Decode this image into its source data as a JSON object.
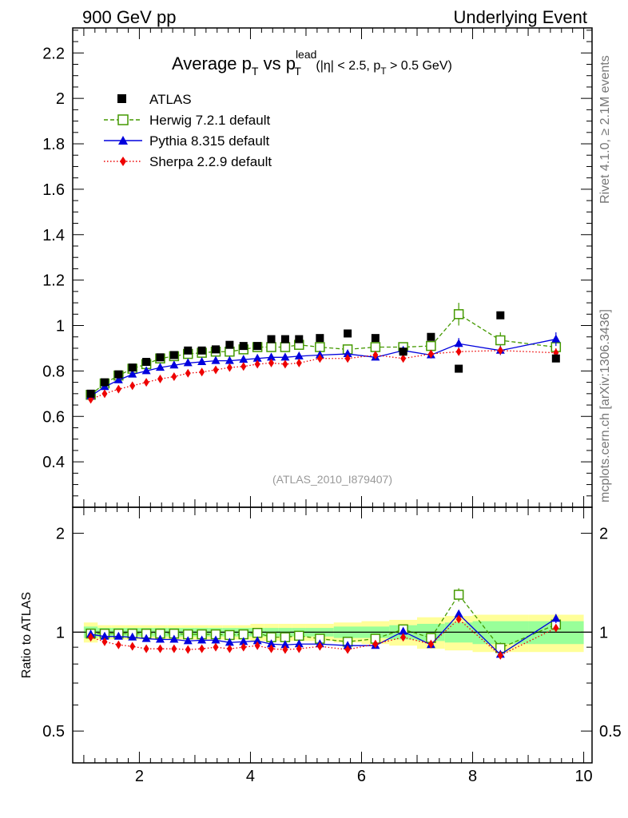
{
  "header": {
    "left": "900 GeV pp",
    "right": "Underlying Event"
  },
  "side": {
    "rivet": "Rivet 4.1.0, ≥ 2.1M events",
    "mcplots": "mcplots.cern.ch [arXiv:1306.3436]"
  },
  "chart_data": {
    "type": "scatter",
    "title": {
      "main": "Average p",
      "sub_t": "T",
      "vs": " vs p",
      "sup_lead": "lead",
      "sub_t2": "T",
      "cond_open": " (|η| < 2.5, p",
      "cond_sub": "T",
      "cond_close": " > 0.5 GeV)"
    },
    "analysis_label": "(ATLAS_2010_I879407)",
    "ratio_ylabel": "Ratio to ATLAS",
    "xlabel": "",
    "xlim": [
      0.8,
      10.15
    ],
    "ylim_main": [
      0.2,
      2.31
    ],
    "ylim_ratio": [
      0.4,
      2.4
    ],
    "x_ticks": [
      "2",
      "4",
      "6",
      "8",
      "10"
    ],
    "main_y_ticks": [
      "0.4",
      "0.6",
      "0.8",
      "1",
      "1.2",
      "1.4",
      "1.6",
      "1.8",
      "2",
      "2.2"
    ],
    "ratio_y_ticks": [
      "0.5",
      "1",
      "2"
    ],
    "x": [
      1.125,
      1.375,
      1.625,
      1.875,
      2.125,
      2.375,
      2.625,
      2.875,
      3.125,
      3.375,
      3.625,
      3.875,
      4.125,
      4.375,
      4.625,
      4.875,
      5.25,
      5.75,
      6.25,
      6.75,
      7.25,
      7.75,
      8.5,
      9.5
    ],
    "x_edges": [
      1.0,
      1.25,
      1.5,
      1.75,
      2.0,
      2.25,
      2.5,
      2.75,
      3.0,
      3.25,
      3.5,
      3.75,
      4.0,
      4.25,
      4.5,
      4.75,
      5.0,
      5.5,
      6.0,
      6.5,
      7.0,
      7.5,
      8.0,
      9.0,
      10.0
    ],
    "band_inner": [
      0.04,
      0.03,
      0.03,
      0.03,
      0.03,
      0.03,
      0.03,
      0.03,
      0.03,
      0.03,
      0.03,
      0.03,
      0.03,
      0.03,
      0.03,
      0.03,
      0.03,
      0.04,
      0.04,
      0.05,
      0.06,
      0.07,
      0.08,
      0.08
    ],
    "band_outer": [
      0.07,
      0.05,
      0.05,
      0.05,
      0.05,
      0.05,
      0.05,
      0.05,
      0.05,
      0.05,
      0.05,
      0.05,
      0.06,
      0.06,
      0.06,
      0.06,
      0.06,
      0.07,
      0.08,
      0.09,
      0.11,
      0.12,
      0.13,
      0.13
    ],
    "series": [
      {
        "name": "ATLAS",
        "color": "#000000",
        "marker": "square-filled",
        "values": [
          0.7,
          0.75,
          0.785,
          0.815,
          0.84,
          0.86,
          0.87,
          0.89,
          0.89,
          0.895,
          0.915,
          0.91,
          0.91,
          0.94,
          0.94,
          0.94,
          0.945,
          0.965,
          0.945,
          0.885,
          0.95,
          0.81,
          1.045,
          0.855
        ],
        "errors": [
          0,
          0,
          0,
          0,
          0,
          0,
          0,
          0,
          0,
          0,
          0,
          0,
          0,
          0,
          0,
          0,
          0,
          0,
          0,
          0,
          0,
          0,
          0,
          0
        ],
        "ratio": [
          1,
          1,
          1,
          1,
          1,
          1,
          1,
          1,
          1,
          1,
          1,
          1,
          1,
          1,
          1,
          1,
          1,
          1,
          1,
          1,
          1,
          1,
          1,
          1
        ]
      },
      {
        "name": "Herwig 7.2.1 default",
        "color": "#449900",
        "marker": "square-open",
        "dash": "5,3",
        "values": [
          0.695,
          0.745,
          0.78,
          0.81,
          0.83,
          0.855,
          0.865,
          0.875,
          0.88,
          0.885,
          0.885,
          0.895,
          0.905,
          0.905,
          0.905,
          0.915,
          0.905,
          0.895,
          0.905,
          0.905,
          0.91,
          1.05,
          0.935,
          0.905
        ],
        "errors": [
          0.005,
          0.005,
          0.005,
          0.005,
          0.005,
          0.005,
          0.005,
          0.005,
          0.005,
          0.005,
          0.005,
          0.005,
          0.005,
          0.005,
          0.005,
          0.005,
          0.005,
          0.008,
          0.01,
          0.012,
          0.015,
          0.05,
          0.035,
          0.02
        ],
        "ratio": [
          0.99,
          0.99,
          0.99,
          0.99,
          0.99,
          0.99,
          0.99,
          0.985,
          0.985,
          0.985,
          0.98,
          0.985,
          0.995,
          0.965,
          0.965,
          0.975,
          0.955,
          0.935,
          0.955,
          1.02,
          0.96,
          1.3,
          0.895,
          1.055
        ],
        "ratio_errors": [
          0.005,
          0.005,
          0.005,
          0.005,
          0.005,
          0.005,
          0.005,
          0.005,
          0.005,
          0.005,
          0.005,
          0.005,
          0.005,
          0.005,
          0.005,
          0.005,
          0.005,
          0.008,
          0.01,
          0.012,
          0.015,
          0.06,
          0.035,
          0.02
        ]
      },
      {
        "name": "Pythia 8.315 default",
        "color": "#0000dd",
        "marker": "triangle-filled",
        "values": [
          0.69,
          0.73,
          0.76,
          0.785,
          0.8,
          0.815,
          0.825,
          0.835,
          0.84,
          0.845,
          0.845,
          0.85,
          0.855,
          0.86,
          0.86,
          0.865,
          0.87,
          0.875,
          0.86,
          0.89,
          0.87,
          0.92,
          0.89,
          0.94
        ],
        "errors": [
          0.005,
          0.005,
          0.005,
          0.005,
          0.005,
          0.005,
          0.005,
          0.005,
          0.005,
          0.005,
          0.005,
          0.005,
          0.005,
          0.005,
          0.005,
          0.005,
          0.005,
          0.008,
          0.01,
          0.012,
          0.015,
          0.025,
          0.02,
          0.03
        ],
        "ratio": [
          0.985,
          0.97,
          0.97,
          0.965,
          0.955,
          0.95,
          0.95,
          0.94,
          0.945,
          0.945,
          0.93,
          0.935,
          0.94,
          0.92,
          0.915,
          0.92,
          0.92,
          0.91,
          0.91,
          1.005,
          0.915,
          1.135,
          0.855,
          1.1
        ],
        "ratio_errors": [
          0.005,
          0.005,
          0.005,
          0.005,
          0.005,
          0.005,
          0.005,
          0.005,
          0.005,
          0.005,
          0.005,
          0.005,
          0.005,
          0.005,
          0.005,
          0.005,
          0.005,
          0.008,
          0.01,
          0.012,
          0.015,
          0.03,
          0.02,
          0.035
        ]
      },
      {
        "name": "Sherpa 2.2.9 default",
        "color": "#ee0000",
        "marker": "diamond-filled",
        "dash": "1.5,2.5",
        "values": [
          0.675,
          0.7,
          0.72,
          0.735,
          0.75,
          0.765,
          0.775,
          0.79,
          0.795,
          0.805,
          0.815,
          0.82,
          0.83,
          0.835,
          0.83,
          0.835,
          0.855,
          0.855,
          0.87,
          0.855,
          0.875,
          0.885,
          0.89,
          0.88
        ],
        "errors": [
          0.005,
          0.005,
          0.005,
          0.005,
          0.005,
          0.005,
          0.005,
          0.005,
          0.005,
          0.005,
          0.005,
          0.005,
          0.005,
          0.005,
          0.005,
          0.005,
          0.005,
          0.008,
          0.01,
          0.012,
          0.015,
          0.015,
          0.015,
          0.02
        ],
        "ratio": [
          0.965,
          0.935,
          0.915,
          0.905,
          0.89,
          0.89,
          0.89,
          0.885,
          0.89,
          0.9,
          0.89,
          0.9,
          0.91,
          0.89,
          0.885,
          0.89,
          0.905,
          0.885,
          0.92,
          0.965,
          0.92,
          1.095,
          0.85,
          1.03
        ],
        "ratio_errors": [
          0.005,
          0.005,
          0.005,
          0.005,
          0.005,
          0.005,
          0.005,
          0.005,
          0.005,
          0.005,
          0.005,
          0.005,
          0.005,
          0.005,
          0.005,
          0.005,
          0.005,
          0.008,
          0.01,
          0.012,
          0.015,
          0.02,
          0.015,
          0.02
        ]
      }
    ]
  }
}
